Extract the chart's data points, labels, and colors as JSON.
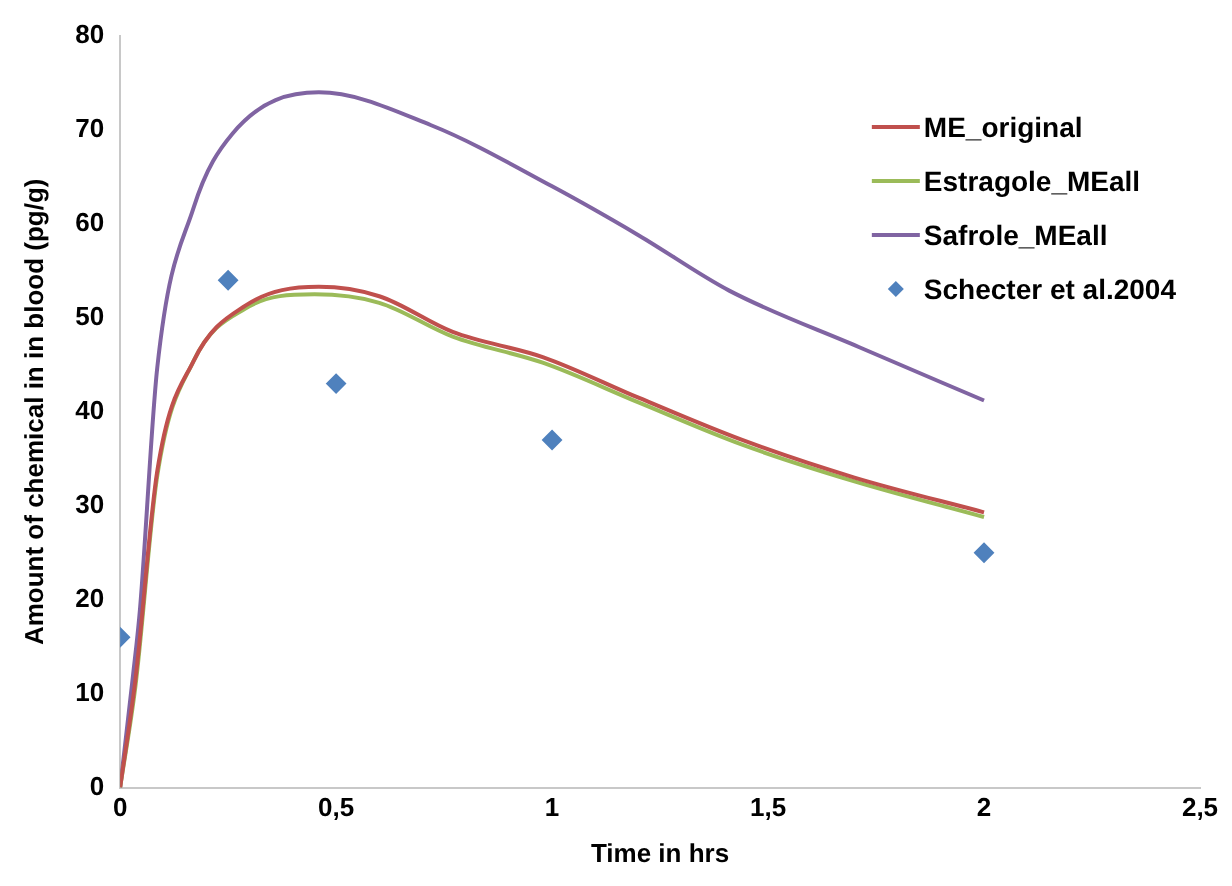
{
  "chart_data": {
    "type": "line",
    "xlabel": "Time in hrs",
    "ylabel": "Amount of chemical in in blood (pg/g)",
    "xlim": [
      0,
      2.5
    ],
    "xticks": [
      0,
      {
        "value": 0.5,
        "label": "0,5"
      },
      1,
      {
        "value": 1.5,
        "label": "1,5"
      },
      2,
      {
        "value": 2.5,
        "label": "2,5"
      }
    ],
    "ylim": [
      0,
      80
    ],
    "yticks": [
      0,
      10,
      20,
      30,
      40,
      50,
      60,
      70,
      80
    ],
    "grid": false,
    "legend": "top right",
    "series": [
      {
        "name": "ME_original",
        "color": "#c0504d",
        "x": [
          0,
          0.036,
          0.086,
          0.17,
          0.29,
          0.46,
          0.6,
          0.77,
          0.98,
          1.2,
          1.44,
          1.7,
          2
        ],
        "values": [
          0,
          11.7,
          33.7,
          45.4,
          51.3,
          53.3,
          52.3,
          48.5,
          45.8,
          41.5,
          37,
          33,
          29.3
        ]
      },
      {
        "name": "Estragole_MEall",
        "color": "#9bbb59",
        "x": [
          0,
          0.036,
          0.086,
          0.17,
          0.29,
          0.45,
          0.6,
          0.77,
          0.98,
          1.2,
          1.44,
          1.7,
          2
        ],
        "values": [
          0,
          11,
          33.2,
          45.4,
          51,
          52.5,
          51.6,
          48,
          45.2,
          41,
          36.5,
          32.6,
          28.8
        ]
      },
      {
        "name": "Safrole_MEall",
        "color": "#8064a2",
        "x": [
          0,
          0.03,
          0.046,
          0.086,
          0.17,
          0.26,
          0.46,
          0.72,
          1,
          1.2,
          1.41,
          1.71,
          2
        ],
        "values": [
          0,
          12,
          19,
          44.7,
          61.7,
          69.6,
          74,
          70.5,
          64,
          58.8,
          52.9,
          46.9,
          41.2
        ]
      },
      {
        "name": "Schecter et al.2004",
        "type": "scatter",
        "marker": "diamond",
        "color": "#4f81bd",
        "x": [
          0,
          0.25,
          0.5,
          1,
          2
        ],
        "values": [
          16,
          54,
          43,
          37,
          25
        ]
      }
    ]
  }
}
